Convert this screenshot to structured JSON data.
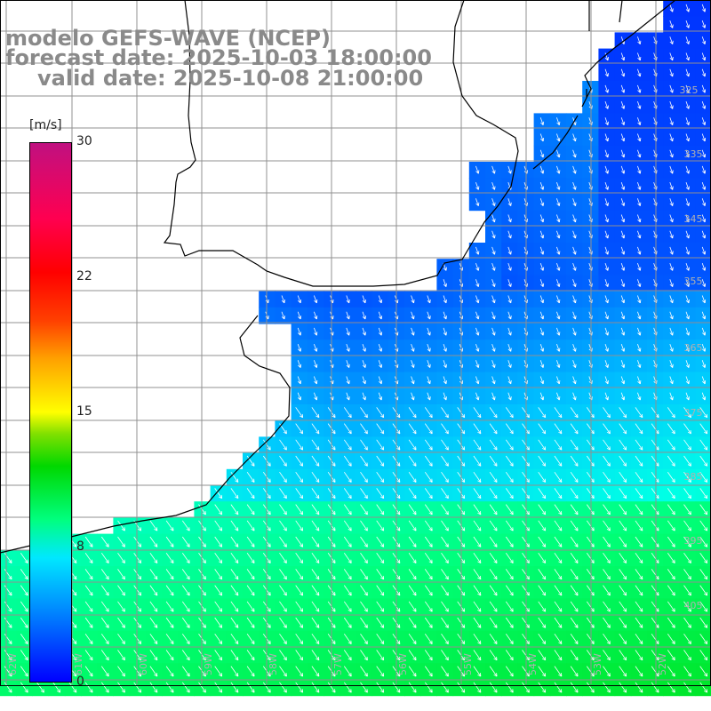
{
  "title": {
    "line1": "modelo GEFS-WAVE (NCEP)",
    "line2": "forecast date: 2025-10-03 18:00:00",
    "line3": "valid date: 2025-10-08 21:00:00"
  },
  "colorbar": {
    "unit": "[m/s]",
    "ticks": [
      "30",
      "22",
      "15",
      "8",
      "0"
    ],
    "tick_values": [
      30,
      22,
      15,
      8,
      0
    ],
    "min": 0,
    "max": 30
  },
  "colors": {
    "land": "#ffffff",
    "grid": "#909090",
    "coast": "#000000",
    "arrows": "#ffffff",
    "title": "#8a8a8a"
  }
}
